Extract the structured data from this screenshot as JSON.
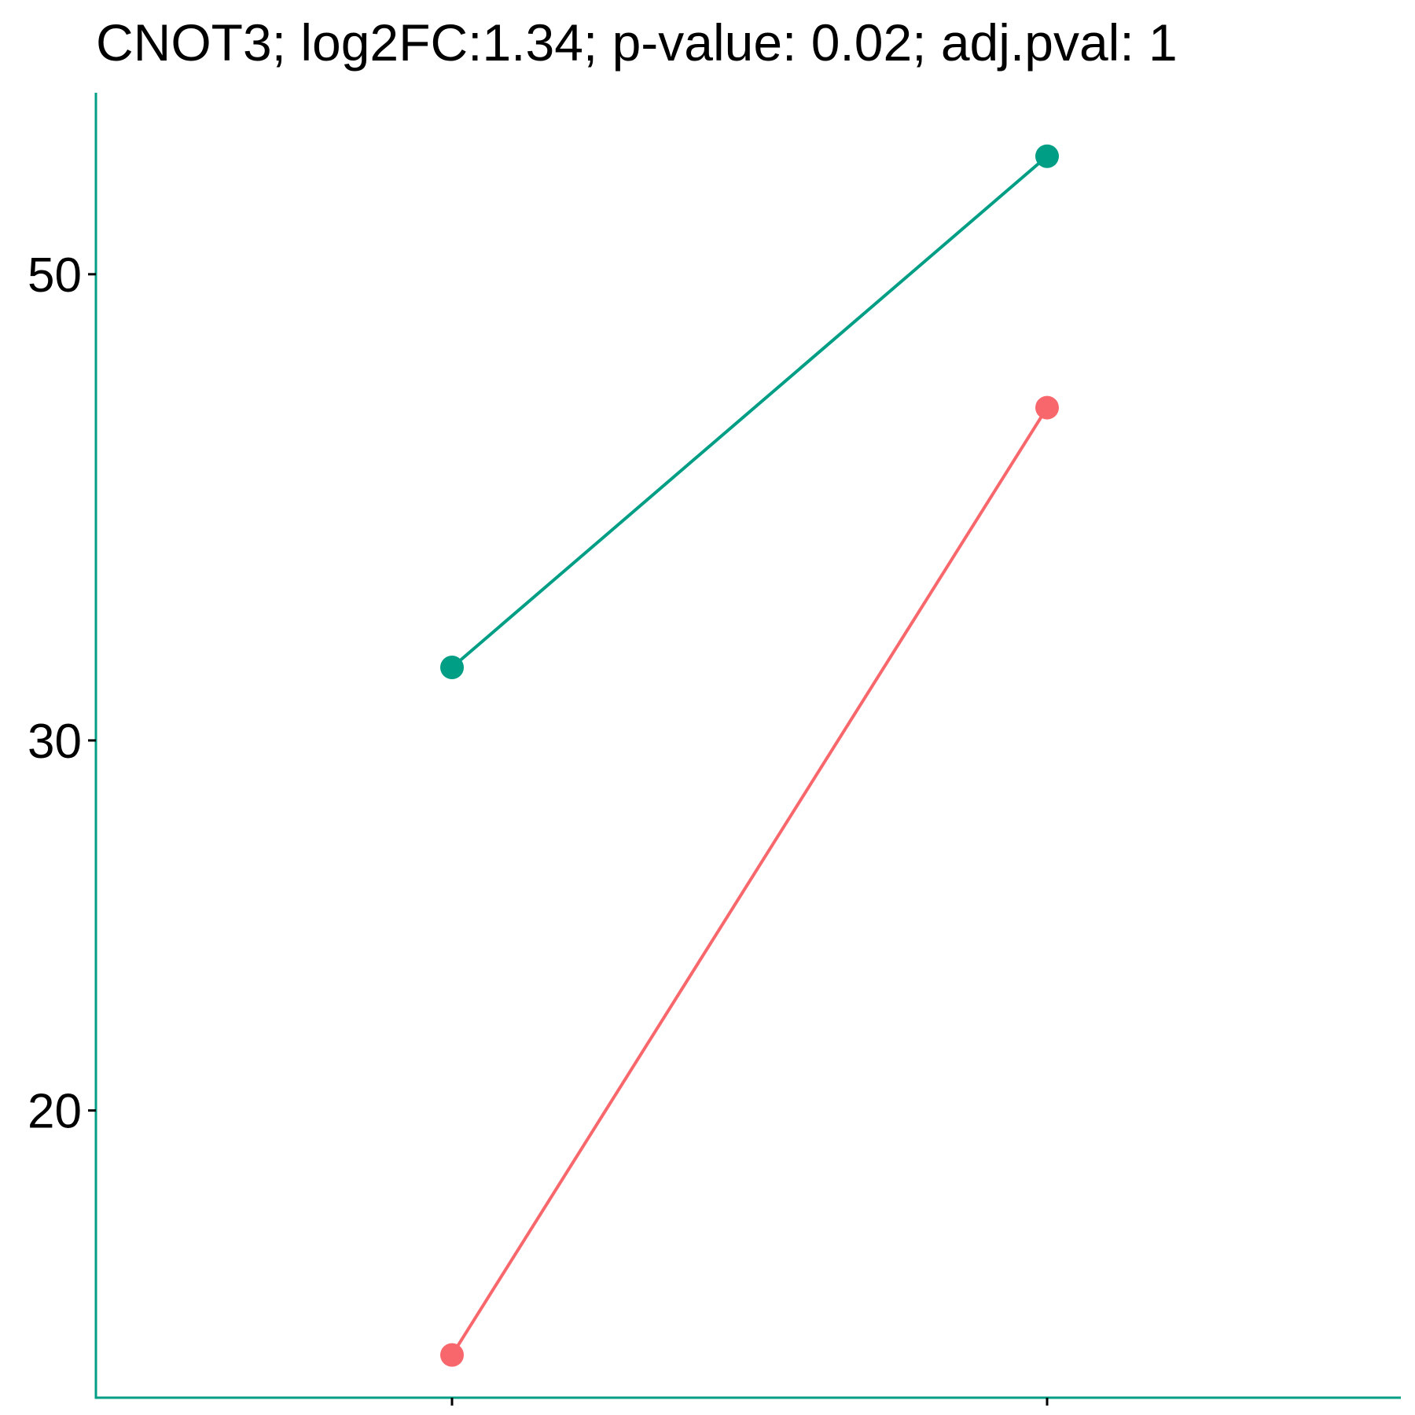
{
  "chart_data": {
    "type": "line",
    "title": "CNOT3; log2FC:1.34; p-value: 0.02; adj.pval: 1",
    "xlabel": "",
    "ylabel": "",
    "y_scale": "log",
    "ylim": [
      14.6,
      61
    ],
    "yticks": [
      20,
      30,
      50
    ],
    "ytick_labels": [
      "20",
      "30",
      "50"
    ],
    "categories": [
      "",
      ""
    ],
    "grid": false,
    "legend": "none",
    "axis_color": "#009E85",
    "series": [
      {
        "color": "#009E85",
        "values": [
          32.5,
          56.9
        ]
      },
      {
        "color": "#F8676B",
        "values": [
          15.3,
          43.2
        ]
      }
    ]
  }
}
